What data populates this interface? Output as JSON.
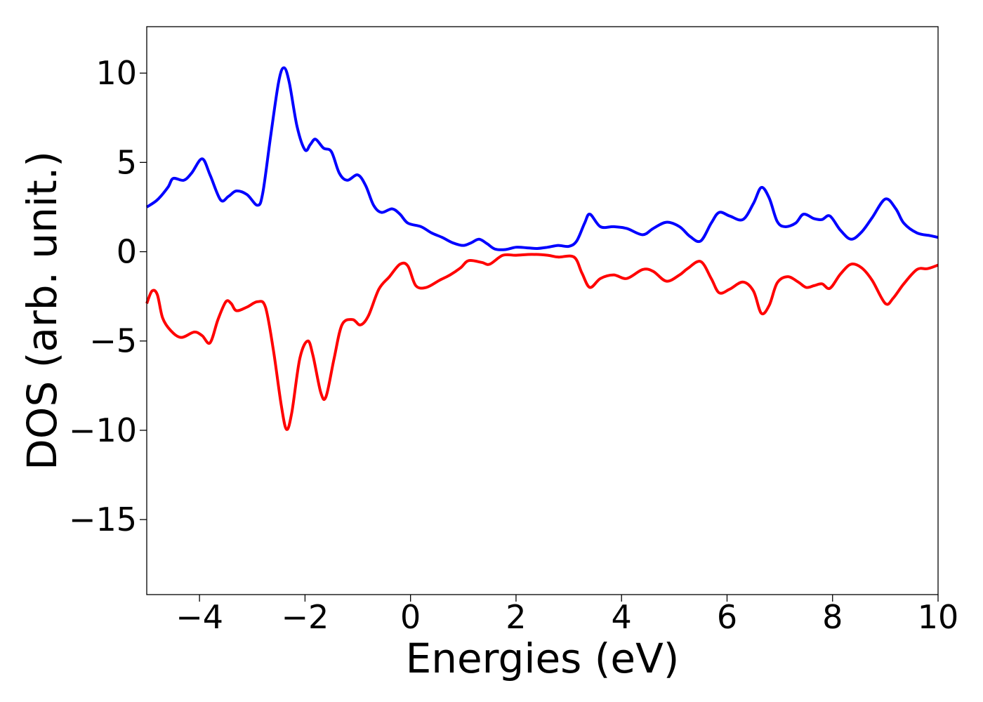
{
  "chart_data": {
    "type": "line",
    "title": "",
    "xlabel": "Energies (eV)",
    "ylabel": "DOS (arb. unit.)",
    "xlim": [
      -5,
      10
    ],
    "ylim": [
      -19.2,
      12.6
    ],
    "xticks": [
      -4,
      -2,
      0,
      2,
      4,
      6,
      8,
      10
    ],
    "xtick_labels": [
      "−4",
      "−2",
      "0",
      "2",
      "4",
      "6",
      "8",
      "10"
    ],
    "yticks": [
      -15,
      -10,
      -5,
      0,
      5,
      10
    ],
    "ytick_labels": [
      "−15",
      "−10",
      "−5",
      "0",
      "5",
      "10"
    ],
    "grid": false,
    "legend": "none",
    "series": [
      {
        "color": "#0000ff",
        "points": [
          [
            -5.0,
            2.5
          ],
          [
            -4.8,
            2.9
          ],
          [
            -4.6,
            3.6
          ],
          [
            -4.5,
            4.1
          ],
          [
            -4.3,
            4.0
          ],
          [
            -4.15,
            4.4
          ],
          [
            -3.95,
            5.2
          ],
          [
            -3.8,
            4.3
          ],
          [
            -3.6,
            2.9
          ],
          [
            -3.45,
            3.1
          ],
          [
            -3.3,
            3.4
          ],
          [
            -3.1,
            3.2
          ],
          [
            -2.9,
            2.6
          ],
          [
            -2.8,
            3.3
          ],
          [
            -2.65,
            6.5
          ],
          [
            -2.5,
            9.5
          ],
          [
            -2.4,
            10.3
          ],
          [
            -2.3,
            9.5
          ],
          [
            -2.15,
            7.0
          ],
          [
            -2.0,
            5.7
          ],
          [
            -1.9,
            6.0
          ],
          [
            -1.8,
            6.3
          ],
          [
            -1.65,
            5.8
          ],
          [
            -1.5,
            5.6
          ],
          [
            -1.35,
            4.4
          ],
          [
            -1.2,
            4.0
          ],
          [
            -1.0,
            4.3
          ],
          [
            -0.85,
            3.7
          ],
          [
            -0.7,
            2.6
          ],
          [
            -0.55,
            2.2
          ],
          [
            -0.35,
            2.4
          ],
          [
            -0.2,
            2.1
          ],
          [
            -0.05,
            1.6
          ],
          [
            0.2,
            1.4
          ],
          [
            0.4,
            1.05
          ],
          [
            0.6,
            0.8
          ],
          [
            0.8,
            0.5
          ],
          [
            1.0,
            0.35
          ],
          [
            1.15,
            0.5
          ],
          [
            1.3,
            0.7
          ],
          [
            1.45,
            0.45
          ],
          [
            1.6,
            0.15
          ],
          [
            1.8,
            0.12
          ],
          [
            2.0,
            0.25
          ],
          [
            2.2,
            0.22
          ],
          [
            2.4,
            0.18
          ],
          [
            2.6,
            0.25
          ],
          [
            2.8,
            0.35
          ],
          [
            3.0,
            0.3
          ],
          [
            3.15,
            0.6
          ],
          [
            3.3,
            1.6
          ],
          [
            3.4,
            2.1
          ],
          [
            3.6,
            1.4
          ],
          [
            3.85,
            1.4
          ],
          [
            4.1,
            1.3
          ],
          [
            4.4,
            0.95
          ],
          [
            4.6,
            1.3
          ],
          [
            4.85,
            1.65
          ],
          [
            5.1,
            1.4
          ],
          [
            5.3,
            0.85
          ],
          [
            5.5,
            0.6
          ],
          [
            5.7,
            1.6
          ],
          [
            5.85,
            2.2
          ],
          [
            6.05,
            2.0
          ],
          [
            6.3,
            1.8
          ],
          [
            6.5,
            2.7
          ],
          [
            6.65,
            3.6
          ],
          [
            6.8,
            3.0
          ],
          [
            6.95,
            1.7
          ],
          [
            7.1,
            1.4
          ],
          [
            7.3,
            1.6
          ],
          [
            7.45,
            2.1
          ],
          [
            7.65,
            1.85
          ],
          [
            7.8,
            1.8
          ],
          [
            7.95,
            2.0
          ],
          [
            8.15,
            1.2
          ],
          [
            8.35,
            0.7
          ],
          [
            8.55,
            1.1
          ],
          [
            8.75,
            1.9
          ],
          [
            9.0,
            2.95
          ],
          [
            9.2,
            2.4
          ],
          [
            9.35,
            1.6
          ],
          [
            9.6,
            1.05
          ],
          [
            9.85,
            0.9
          ],
          [
            10.0,
            0.8
          ]
        ]
      },
      {
        "color": "#ff0000",
        "points": [
          [
            -5.0,
            -2.9
          ],
          [
            -4.9,
            -2.2
          ],
          [
            -4.8,
            -2.4
          ],
          [
            -4.7,
            -3.7
          ],
          [
            -4.55,
            -4.4
          ],
          [
            -4.35,
            -4.8
          ],
          [
            -4.1,
            -4.5
          ],
          [
            -3.95,
            -4.7
          ],
          [
            -3.8,
            -5.1
          ],
          [
            -3.65,
            -3.8
          ],
          [
            -3.5,
            -2.8
          ],
          [
            -3.4,
            -2.9
          ],
          [
            -3.3,
            -3.3
          ],
          [
            -3.1,
            -3.1
          ],
          [
            -2.9,
            -2.8
          ],
          [
            -2.75,
            -3.1
          ],
          [
            -2.6,
            -5.5
          ],
          [
            -2.45,
            -8.6
          ],
          [
            -2.35,
            -9.95
          ],
          [
            -2.25,
            -9.0
          ],
          [
            -2.1,
            -6.0
          ],
          [
            -1.95,
            -5.0
          ],
          [
            -1.85,
            -5.8
          ],
          [
            -1.7,
            -7.9
          ],
          [
            -1.6,
            -8.1
          ],
          [
            -1.45,
            -6.0
          ],
          [
            -1.3,
            -4.1
          ],
          [
            -1.1,
            -3.8
          ],
          [
            -0.95,
            -4.1
          ],
          [
            -0.8,
            -3.6
          ],
          [
            -0.6,
            -2.1
          ],
          [
            -0.4,
            -1.4
          ],
          [
            -0.2,
            -0.7
          ],
          [
            -0.05,
            -0.8
          ],
          [
            0.1,
            -1.9
          ],
          [
            0.3,
            -2.0
          ],
          [
            0.55,
            -1.6
          ],
          [
            0.75,
            -1.3
          ],
          [
            0.95,
            -0.9
          ],
          [
            1.1,
            -0.5
          ],
          [
            1.35,
            -0.6
          ],
          [
            1.5,
            -0.7
          ],
          [
            1.75,
            -0.2
          ],
          [
            2.0,
            -0.2
          ],
          [
            2.3,
            -0.15
          ],
          [
            2.6,
            -0.2
          ],
          [
            2.8,
            -0.3
          ],
          [
            3.1,
            -0.3
          ],
          [
            3.25,
            -1.2
          ],
          [
            3.4,
            -2.0
          ],
          [
            3.6,
            -1.5
          ],
          [
            3.85,
            -1.3
          ],
          [
            4.1,
            -1.5
          ],
          [
            4.4,
            -1.0
          ],
          [
            4.6,
            -1.1
          ],
          [
            4.85,
            -1.65
          ],
          [
            5.1,
            -1.3
          ],
          [
            5.25,
            -0.95
          ],
          [
            5.5,
            -0.55
          ],
          [
            5.7,
            -1.5
          ],
          [
            5.85,
            -2.3
          ],
          [
            6.05,
            -2.1
          ],
          [
            6.3,
            -1.7
          ],
          [
            6.5,
            -2.2
          ],
          [
            6.65,
            -3.45
          ],
          [
            6.8,
            -3.0
          ],
          [
            6.95,
            -1.75
          ],
          [
            7.15,
            -1.4
          ],
          [
            7.35,
            -1.7
          ],
          [
            7.5,
            -2.0
          ],
          [
            7.65,
            -1.9
          ],
          [
            7.8,
            -1.8
          ],
          [
            7.95,
            -2.05
          ],
          [
            8.15,
            -1.25
          ],
          [
            8.35,
            -0.7
          ],
          [
            8.55,
            -0.9
          ],
          [
            8.75,
            -1.6
          ],
          [
            9.0,
            -2.9
          ],
          [
            9.15,
            -2.6
          ],
          [
            9.35,
            -1.8
          ],
          [
            9.6,
            -1.0
          ],
          [
            9.8,
            -0.95
          ],
          [
            10.0,
            -0.75
          ]
        ]
      }
    ]
  }
}
